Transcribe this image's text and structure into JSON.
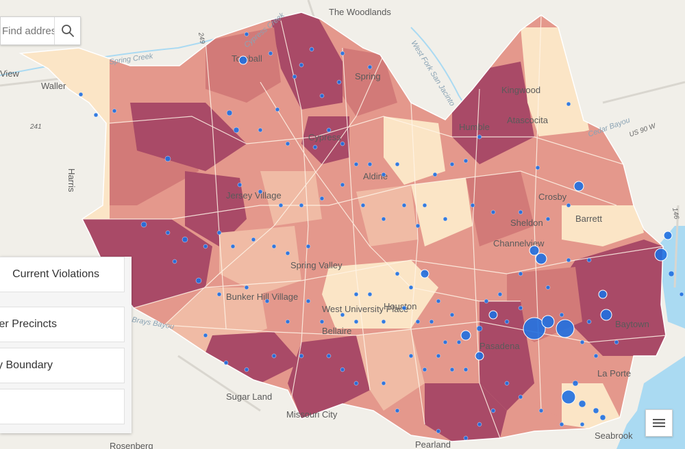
{
  "map": {
    "places": [
      "The Woodlands",
      "Tomball",
      "Spring",
      "Humble",
      "Kingwood",
      "Waller",
      "Atascocita",
      "Aldine",
      "Crosby",
      "Barrett",
      "Sheldon",
      "Jersey Village",
      "Spring Valley",
      "Bunker Hill Village",
      "West University Place",
      "Bellaire",
      "Houston",
      "Pasadena",
      "Baytown",
      "La Porte",
      "Seabrook",
      "Sugar Land",
      "Missouri City",
      "Pearland",
      "Rosenberg",
      "Cypress",
      "Channelview",
      "View",
      "Harris"
    ],
    "water_labels": [
      "Spring Creek",
      "Cypress Creek",
      "West Fork San Jacinto",
      "Cedar Bayou",
      "Brays Bayou"
    ],
    "road_labels": [
      "249",
      "241",
      "US 90 W",
      "146"
    ]
  },
  "search": {
    "placeholder": "Find address or place"
  },
  "layers": {
    "items": [
      "Current Violations",
      "Commissioner Precincts",
      "Harris County Boundary",
      ""
    ]
  },
  "colors": {
    "choropleth": [
      "#fbe5c6",
      "#f0bba5",
      "#e4988c",
      "#d27a78",
      "#a94a67"
    ],
    "points": "#1f6fe0",
    "water": "#aadaf2"
  },
  "icons": {
    "search": "search-icon",
    "menu": "hamburger-menu-icon"
  }
}
